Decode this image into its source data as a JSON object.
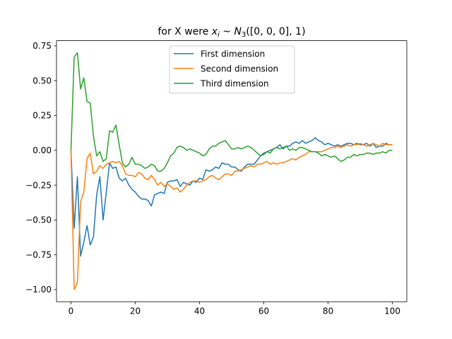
{
  "chart_data": {
    "type": "line",
    "title": "for X were x_i ~ N_3([0, 0, 0], 1)",
    "title_parts": {
      "prefix": "for X were ",
      "var": "x",
      "sub_i": "i",
      "tilde": " ~ ",
      "dist": "N",
      "sub_3": "3",
      "args": "([0, 0, 0], 1)"
    },
    "xlabel": "",
    "ylabel": "",
    "xlim": [
      -4.5,
      104.5
    ],
    "ylim": [
      -1.087,
      0.787
    ],
    "xticks": [
      0,
      20,
      40,
      60,
      80,
      100
    ],
    "xtick_labels": [
      "0",
      "20",
      "40",
      "60",
      "80",
      "100"
    ],
    "yticks": [
      -1.0,
      -0.75,
      -0.5,
      -0.25,
      0.0,
      0.25,
      0.5,
      0.75
    ],
    "ytick_labels": [
      "−1.00",
      "−0.75",
      "−0.50",
      "−0.25",
      "0.00",
      "0.25",
      "0.50",
      "0.75"
    ],
    "grid": false,
    "legend_position": "upper center",
    "series": [
      {
        "name": "First dimension",
        "color": "#1f77b4",
        "values": [
          0.0,
          -0.56,
          -0.19,
          -0.76,
          -0.66,
          -0.54,
          -0.68,
          -0.62,
          -0.32,
          -0.19,
          -0.5,
          -0.3,
          -0.09,
          -0.13,
          -0.12,
          -0.2,
          -0.22,
          -0.2,
          -0.25,
          -0.28,
          -0.3,
          -0.33,
          -0.35,
          -0.35,
          -0.36,
          -0.4,
          -0.32,
          -0.31,
          -0.3,
          -0.31,
          -0.23,
          -0.22,
          -0.22,
          -0.21,
          -0.26,
          -0.23,
          -0.24,
          -0.25,
          -0.22,
          -0.23,
          -0.2,
          -0.21,
          -0.14,
          -0.15,
          -0.14,
          -0.12,
          -0.13,
          -0.09,
          -0.1,
          -0.1,
          -0.12,
          -0.12,
          -0.14,
          -0.15,
          -0.12,
          -0.1,
          -0.1,
          -0.1,
          -0.07,
          -0.04,
          -0.02,
          -0.01,
          0.0,
          0.01,
          0.02,
          0.04,
          0.01,
          0.03,
          0.03,
          0.05,
          0.06,
          0.05,
          0.07,
          0.05,
          0.06,
          0.07,
          0.09,
          0.07,
          0.06,
          0.04,
          0.05,
          0.04,
          0.03,
          0.04,
          0.03,
          0.04,
          0.05,
          0.05,
          0.04,
          0.05,
          0.04,
          0.04,
          0.05,
          0.03,
          0.05,
          0.02,
          0.03,
          0.03,
          0.05,
          0.04,
          0.04
        ]
      },
      {
        "name": "Second dimension",
        "color": "#ff7f0e",
        "values": [
          0.0,
          -1.0,
          -0.95,
          -0.37,
          -0.3,
          -0.06,
          -0.02,
          -0.17,
          -0.15,
          -0.11,
          -0.13,
          -0.1,
          -0.09,
          -0.08,
          -0.09,
          -0.08,
          -0.11,
          -0.17,
          -0.18,
          -0.18,
          -0.19,
          -0.16,
          -0.17,
          -0.2,
          -0.21,
          -0.18,
          -0.21,
          -0.25,
          -0.23,
          -0.26,
          -0.24,
          -0.26,
          -0.28,
          -0.27,
          -0.3,
          -0.28,
          -0.25,
          -0.23,
          -0.22,
          -0.22,
          -0.23,
          -0.22,
          -0.21,
          -0.19,
          -0.18,
          -0.2,
          -0.21,
          -0.19,
          -0.17,
          -0.17,
          -0.18,
          -0.15,
          -0.15,
          -0.14,
          -0.13,
          -0.12,
          -0.11,
          -0.12,
          -0.1,
          -0.1,
          -0.09,
          -0.08,
          -0.1,
          -0.09,
          -0.1,
          -0.09,
          -0.09,
          -0.08,
          -0.07,
          -0.06,
          -0.07,
          -0.05,
          -0.04,
          -0.03,
          -0.01,
          -0.01,
          -0.01,
          -0.01,
          -0.01,
          0.0,
          0.01,
          0.02,
          0.02,
          0.03,
          0.02,
          0.03,
          0.04,
          0.03,
          0.04,
          0.04,
          0.05,
          0.04,
          0.03,
          0.04,
          0.05,
          0.04,
          0.03,
          0.05,
          0.04,
          0.04,
          0.04
        ]
      },
      {
        "name": "Third dimension",
        "color": "#2ca02c",
        "values": [
          0.0,
          0.67,
          0.7,
          0.44,
          0.52,
          0.35,
          0.34,
          0.1,
          -0.04,
          -0.01,
          -0.08,
          -0.06,
          0.14,
          0.13,
          0.18,
          0.04,
          -0.09,
          -0.12,
          -0.1,
          -0.05,
          -0.1,
          -0.1,
          -0.11,
          -0.13,
          -0.12,
          -0.1,
          -0.11,
          -0.15,
          -0.15,
          -0.13,
          -0.09,
          -0.04,
          -0.02,
          0.02,
          0.03,
          0.02,
          0.0,
          0.01,
          0.0,
          -0.01,
          -0.02,
          -0.04,
          -0.03,
          0.01,
          0.03,
          0.03,
          0.05,
          0.06,
          0.07,
          0.04,
          0.01,
          0.01,
          0.02,
          0.01,
          0.02,
          0.03,
          0.02,
          0.0,
          -0.02,
          -0.04,
          -0.03,
          -0.01,
          -0.02,
          0.01,
          0.02,
          0.01,
          0.02,
          0.03,
          0.0,
          0.01,
          0.0,
          0.02,
          0.02,
          0.01,
          0.0,
          -0.01,
          -0.01,
          -0.02,
          -0.04,
          -0.03,
          -0.04,
          -0.05,
          -0.04,
          -0.06,
          -0.08,
          -0.07,
          -0.05,
          -0.05,
          -0.03,
          -0.04,
          -0.03,
          -0.03,
          -0.02,
          -0.02,
          -0.03,
          -0.02,
          -0.02,
          -0.01,
          -0.02,
          0.0,
          0.0
        ]
      }
    ]
  }
}
